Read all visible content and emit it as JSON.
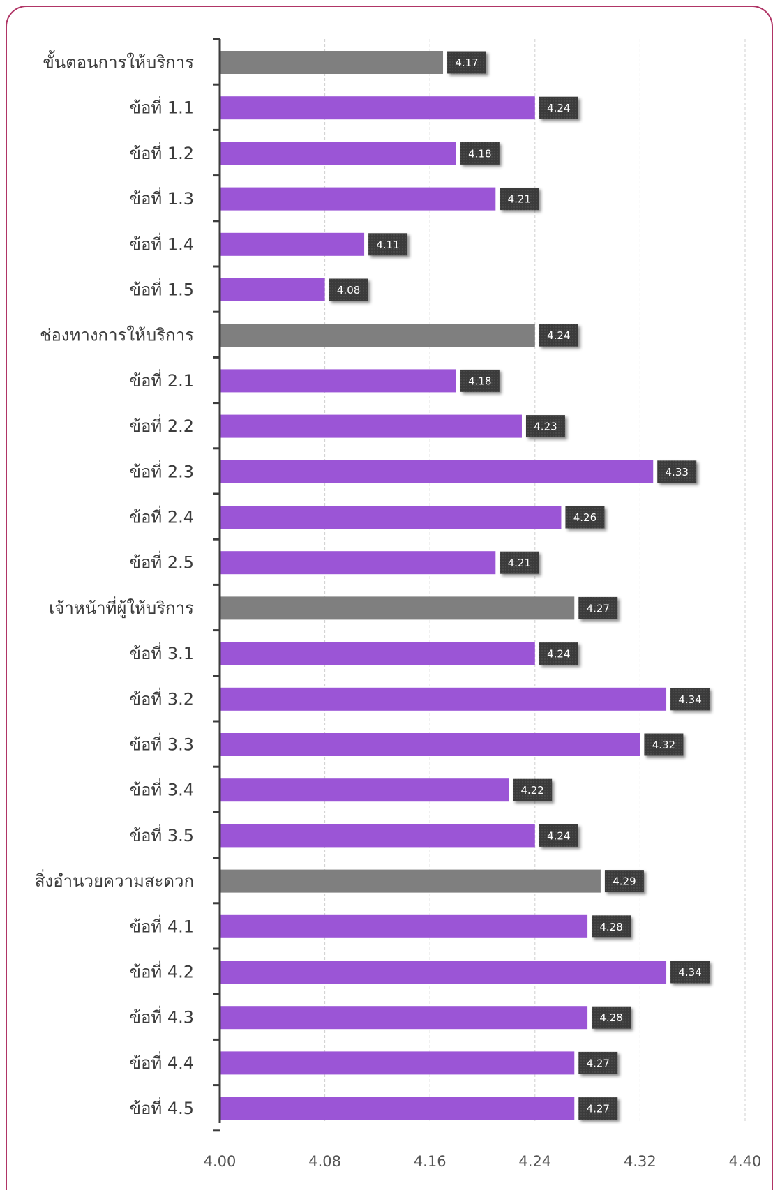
{
  "chart_data": {
    "type": "bar",
    "orientation": "horizontal",
    "categories": [
      "ขั้นตอนการให้บริการ",
      "ข้อที่ 1.1",
      "ข้อที่ 1.2",
      "ข้อที่ 1.3",
      "ข้อที่ 1.4",
      "ข้อที่ 1.5",
      "ช่องทางการให้บริการ",
      "ข้อที่ 2.1",
      "ข้อที่ 2.2",
      "ข้อที่ 2.3",
      "ข้อที่ 2.4",
      "ข้อที่ 2.5",
      "เจ้าหน้าที่ผู้ให้บริการ",
      "ข้อที่ 3.1",
      "ข้อที่ 3.2",
      "ข้อที่ 3.3",
      "ข้อที่ 3.4",
      "ข้อที่ 3.5",
      "สิ่งอำนวยความสะดวก",
      "ข้อที่ 4.1",
      "ข้อที่ 4.2",
      "ข้อที่ 4.3",
      "ข้อที่ 4.4",
      "ข้อที่ 4.5"
    ],
    "values": [
      4.17,
      4.24,
      4.18,
      4.21,
      4.11,
      4.08,
      4.24,
      4.18,
      4.23,
      4.33,
      4.26,
      4.21,
      4.27,
      4.24,
      4.34,
      4.32,
      4.22,
      4.24,
      4.29,
      4.28,
      4.34,
      4.28,
      4.27,
      4.27
    ],
    "data_labels": [
      "4.17",
      "4.24",
      "4.18",
      "4.21",
      "4.11",
      "4.08",
      "4.24",
      "4.18",
      "4.23",
      "4.33",
      "4.26",
      "4.21",
      "4.27",
      "4.24",
      "4.34",
      "4.32",
      "4.22",
      "4.24",
      "4.29",
      "4.28",
      "4.34",
      "4.28",
      "4.27",
      "4.27"
    ],
    "group_header_indices": [
      0,
      6,
      12,
      18
    ],
    "xlim": [
      4.0,
      4.4
    ],
    "x_ticks": [
      4.0,
      4.08,
      4.16,
      4.24,
      4.32,
      4.4
    ],
    "x_tick_labels": [
      "4.00",
      "4.08",
      "4.16",
      "4.24",
      "4.32",
      "4.40"
    ],
    "grid": "vertical-dashed",
    "legend": "none",
    "colors": {
      "group_bar": "#7f7f7f",
      "item_bar": "#9b55d6",
      "label_box": "#3b3b3b",
      "label_text": "#ffffff",
      "frame": "#b03566",
      "axis": "#3c3c3c",
      "grid": "#d0d0d0"
    }
  }
}
